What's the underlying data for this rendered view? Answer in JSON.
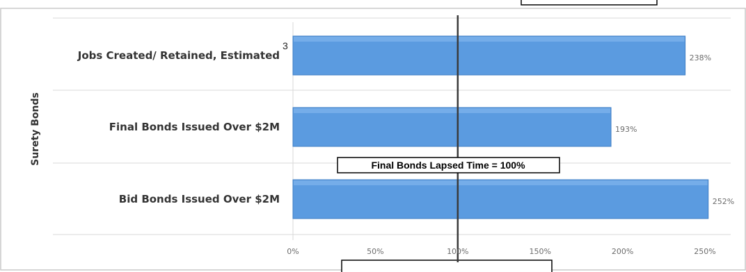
{
  "chart_data": {
    "type": "bar",
    "orientation": "horizontal",
    "categories": [
      "Jobs Created/ Retained, Estimated",
      "Final Bonds Issued Over $2M",
      "Bid Bonds Issued Over $2M"
    ],
    "category_superscripts": [
      "3",
      "",
      ""
    ],
    "values": [
      238,
      193,
      252
    ],
    "data_labels": [
      "238%",
      "193%",
      "252%"
    ],
    "xlim": [
      0,
      250
    ],
    "x_ticks": [
      0,
      50,
      100,
      150,
      200,
      250
    ],
    "x_tick_labels": [
      "0%",
      "50%",
      "100%",
      "150%",
      "200%",
      "250%"
    ],
    "ylabel": "Surety Bonds",
    "grid": true,
    "reference_line": {
      "value": 100,
      "label": "Final Bonds Lapsed Time = 100%"
    },
    "colors": {
      "bar_fill": "#5b9be0",
      "bar_stroke": "#3d7cc4",
      "ref_line": "#3a3a3a",
      "grid": "#d9d9d9"
    }
  }
}
